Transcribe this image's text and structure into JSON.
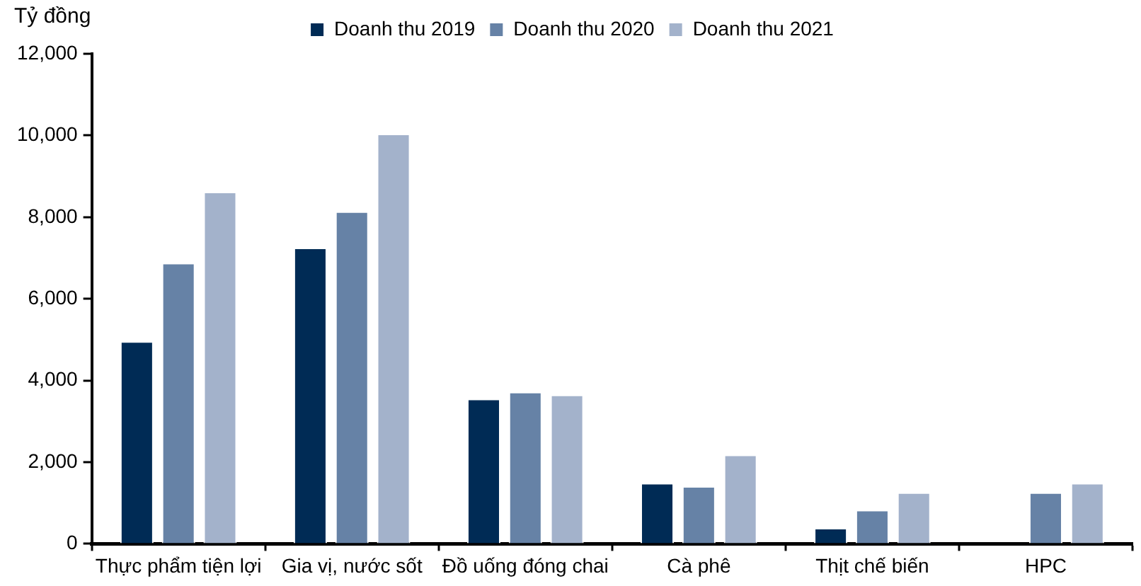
{
  "chart_data": {
    "type": "bar",
    "ylabel": "Tỷ đồng",
    "categories": [
      "Thực phẩm tiện lợi",
      "Gia vị, nước sốt",
      "Đồ uống đóng chai",
      "Cà phê",
      "Thịt chế biến",
      "HPC"
    ],
    "series": [
      {
        "name": "Doanh thu 2019",
        "color": "#002b55",
        "values": [
          4960,
          7250,
          3550,
          1490,
          390,
          null
        ]
      },
      {
        "name": "Doanh thu 2020",
        "color": "#6682a6",
        "values": [
          6880,
          8140,
          3720,
          1410,
          830,
          1260
        ]
      },
      {
        "name": "Doanh thu 2021",
        "color": "#a3b2cb",
        "values": [
          8620,
          10040,
          3650,
          2180,
          1260,
          1490
        ]
      }
    ],
    "ylim": [
      0,
      12000
    ],
    "yticks": [
      0,
      {
        "value": 2000,
        "label": "2,000"
      },
      {
        "value": 4000,
        "label": "4,000"
      },
      {
        "value": 6000,
        "label": "6,000"
      },
      {
        "value": 8000,
        "label": "8,000"
      },
      {
        "value": 10000,
        "label": "10,000"
      },
      {
        "value": 12000,
        "label": "12,000"
      }
    ],
    "grid": false,
    "legend": "top"
  }
}
